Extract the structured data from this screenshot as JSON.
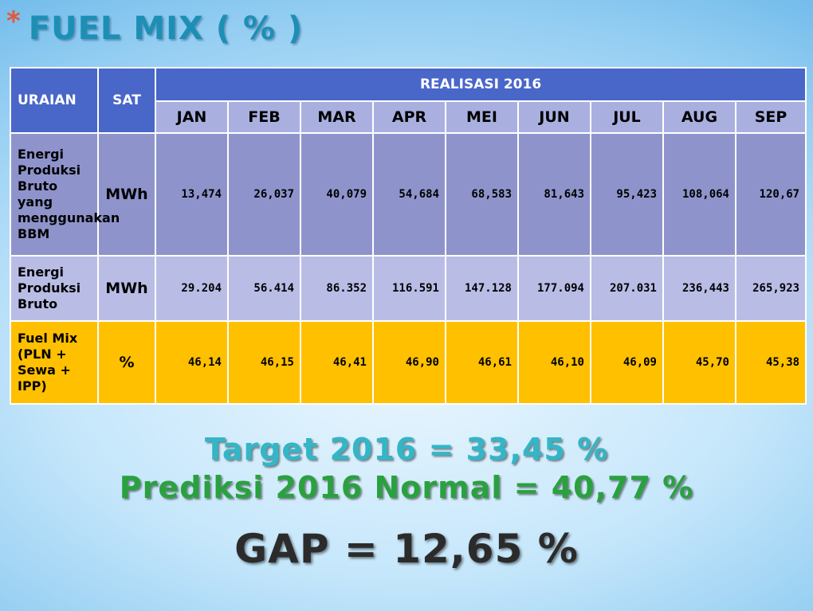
{
  "slide": {
    "bullet": "*",
    "title": "FUEL MIX ( % )"
  },
  "table": {
    "headers": {
      "uraian": "URAIAN",
      "sat": "SAT",
      "group": "REALISASI 2016",
      "months": [
        "JAN",
        "FEB",
        "MAR",
        "APR",
        "MEI",
        "JUN",
        "JUL",
        "AUG",
        "SEP"
      ]
    },
    "rows": [
      {
        "label": "Energi Produksi Bruto yang menggunakan BBM",
        "unit": "MWh",
        "values": [
          "13,474",
          "26,037",
          "40,079",
          "54,684",
          "68,583",
          "81,643",
          "95,423",
          "108,064",
          "120,67"
        ],
        "color": "#8e94cb"
      },
      {
        "label": "Energi Produksi Bruto",
        "unit": "MWh",
        "values": [
          "29.204",
          "56.414",
          "86.352",
          "116.591",
          "147.128",
          "177.094",
          "207.031",
          "236,443",
          "265,923"
        ],
        "color": "#b9bde6"
      },
      {
        "label": "Fuel Mix (PLN + Sewa + IPP)",
        "unit": "%",
        "values": [
          "46,14",
          "46,15",
          "46,41",
          "46,90",
          "46,61",
          "46,10",
          "46,09",
          "45,70",
          "45,38"
        ],
        "color": "#ffc000"
      }
    ]
  },
  "summary": {
    "target": "Target 2016 = 33,45 %",
    "prediksi": "Prediksi 2016 Normal = 40,77 %",
    "gap": "GAP = 12,65 %"
  },
  "colors": {
    "header_dark": "#4966c9",
    "header_month": "#a9b0e0",
    "title": "#1d8fb5",
    "bullet": "#e15a3a",
    "target": "#33b6c7",
    "prediksi": "#2aa13f"
  }
}
